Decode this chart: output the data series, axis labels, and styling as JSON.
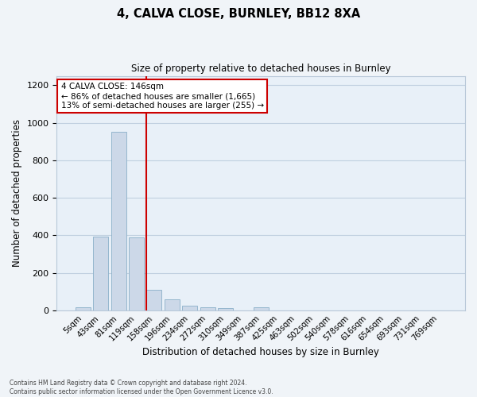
{
  "title1": "4, CALVA CLOSE, BURNLEY, BB12 8XA",
  "title2": "Size of property relative to detached houses in Burnley",
  "xlabel": "Distribution of detached houses by size in Burnley",
  "ylabel": "Number of detached properties",
  "bar_labels": [
    "5sqm",
    "43sqm",
    "81sqm",
    "119sqm",
    "158sqm",
    "196sqm",
    "234sqm",
    "272sqm",
    "310sqm",
    "349sqm",
    "387sqm",
    "425sqm",
    "463sqm",
    "502sqm",
    "540sqm",
    "578sqm",
    "616sqm",
    "654sqm",
    "693sqm",
    "731sqm",
    "769sqm"
  ],
  "bar_values": [
    15,
    395,
    950,
    390,
    110,
    57,
    27,
    18,
    13,
    0,
    15,
    0,
    0,
    0,
    0,
    0,
    0,
    0,
    0,
    0,
    0
  ],
  "bar_color": "#ccd8e8",
  "bar_edgecolor": "#8aafc8",
  "vline_color": "#cc0000",
  "vline_pos": 3.575,
  "annotation_text": "4 CALVA CLOSE: 146sqm\n← 86% of detached houses are smaller (1,665)\n13% of semi-detached houses are larger (255) →",
  "annotation_box_color": "#cc0000",
  "ylim": [
    0,
    1250
  ],
  "yticks": [
    0,
    200,
    400,
    600,
    800,
    1000,
    1200
  ],
  "grid_color": "#c0d0e0",
  "bg_color": "#e8f0f8",
  "fig_bg_color": "#f0f4f8",
  "footer": "Contains HM Land Registry data © Crown copyright and database right 2024.\nContains public sector information licensed under the Open Government Licence v3.0."
}
